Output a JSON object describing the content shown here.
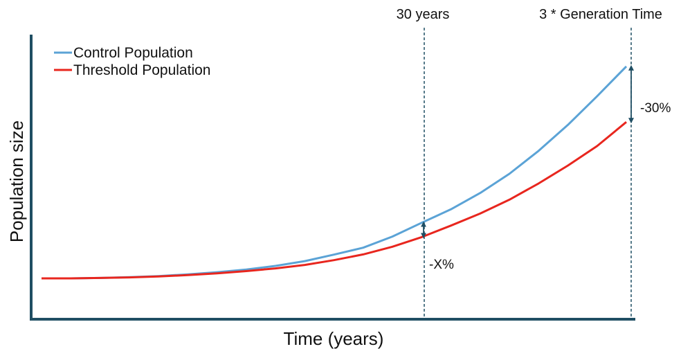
{
  "chart_data": {
    "type": "line",
    "title": "",
    "xlabel": "Time (years)",
    "ylabel": "Population size",
    "grid": false,
    "ticks": false,
    "legend_position": "top-left",
    "colors": {
      "axis": "#1f4e63",
      "control": "#5ba3d6",
      "threshold": "#e8261e",
      "marker": "#1f4e63"
    },
    "x": [
      0,
      0.05,
      0.1,
      0.15,
      0.2,
      0.25,
      0.3,
      0.35,
      0.4,
      0.45,
      0.5,
      0.55,
      0.6,
      0.65,
      0.7,
      0.75,
      0.8,
      0.85,
      0.9,
      0.95,
      1.0
    ],
    "series": [
      {
        "name": "Control Population",
        "color": "#5ba3d6",
        "values": [
          0.0,
          0.0,
          0.002,
          0.006,
          0.012,
          0.021,
          0.032,
          0.046,
          0.065,
          0.09,
          0.124,
          0.16,
          0.218,
          0.29,
          0.36,
          0.445,
          0.545,
          0.665,
          0.8,
          0.95,
          1.105
        ]
      },
      {
        "name": "Threshold Population",
        "color": "#e8261e",
        "values": [
          0.0,
          0.0,
          0.002,
          0.005,
          0.01,
          0.017,
          0.026,
          0.038,
          0.052,
          0.07,
          0.095,
          0.125,
          0.165,
          0.215,
          0.275,
          0.338,
          0.41,
          0.495,
          0.588,
          0.69,
          0.815
        ]
      }
    ],
    "annotations": {
      "marker_30_years": {
        "label": "30 years",
        "x": 0.65,
        "difference_label": "-X%"
      },
      "marker_3_generation": {
        "label": "3 * Generation Time",
        "x": 1.0,
        "difference_label": "-30%"
      }
    }
  }
}
